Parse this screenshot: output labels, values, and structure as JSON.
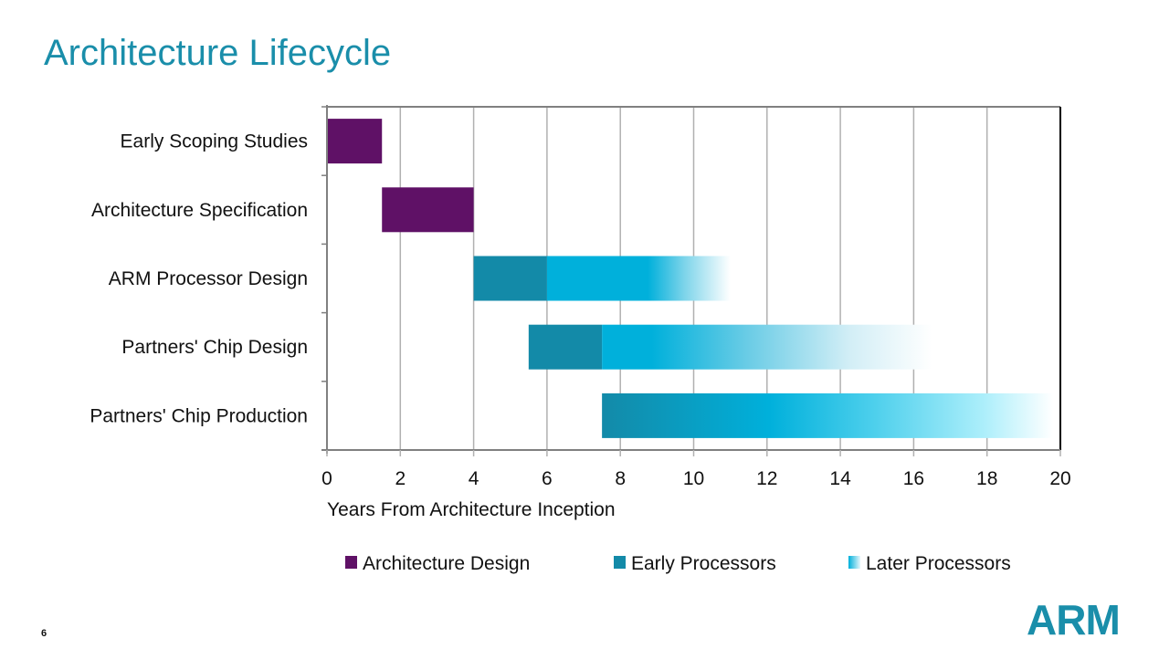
{
  "slide": {
    "title": "Architecture Lifecycle",
    "page_number": "6",
    "logo_text": "ARM"
  },
  "colors": {
    "title": "#1a8eaa",
    "architecture_design": "#5f1166",
    "early_processors": "#138aa8",
    "later_processors_start": "#00b0db",
    "later_processors_end": "#ffffff",
    "grid": "#b0b0b0",
    "axis": "#808080"
  },
  "chart_data": {
    "type": "bar",
    "orientation": "horizontal-stacked-gantt",
    "title": "",
    "xlabel": "Years From Architecture Inception",
    "ylabel": "",
    "xlim": [
      0,
      20
    ],
    "x_ticks": [
      0,
      2,
      4,
      6,
      8,
      10,
      12,
      14,
      16,
      18,
      20
    ],
    "grid": true,
    "legend_position": "bottom",
    "categories": [
      "Early Scoping Studies",
      "Architecture Specification",
      "ARM Processor Design",
      "Partners' Chip Design",
      "Partners' Chip Production"
    ],
    "series": [
      {
        "name": "Architecture Design",
        "style": "solid",
        "segments": [
          {
            "category": "Early Scoping Studies",
            "start": 0,
            "end": 1.5
          },
          {
            "category": "Architecture Specification",
            "start": 1.5,
            "end": 4
          }
        ]
      },
      {
        "name": "Early Processors",
        "style": "solid",
        "segments": [
          {
            "category": "ARM Processor Design",
            "start": 4,
            "end": 6
          },
          {
            "category": "Partners' Chip Design",
            "start": 5.5,
            "end": 7.5
          }
        ]
      },
      {
        "name": "Later Processors",
        "style": "fading-gradient",
        "segments": [
          {
            "category": "ARM Processor Design",
            "start": 6,
            "end": 11
          },
          {
            "category": "Partners' Chip Design",
            "start": 7.5,
            "end": 16.5
          },
          {
            "category": "Partners' Chip Production",
            "start": 7.5,
            "end": 19.8
          }
        ]
      }
    ]
  }
}
